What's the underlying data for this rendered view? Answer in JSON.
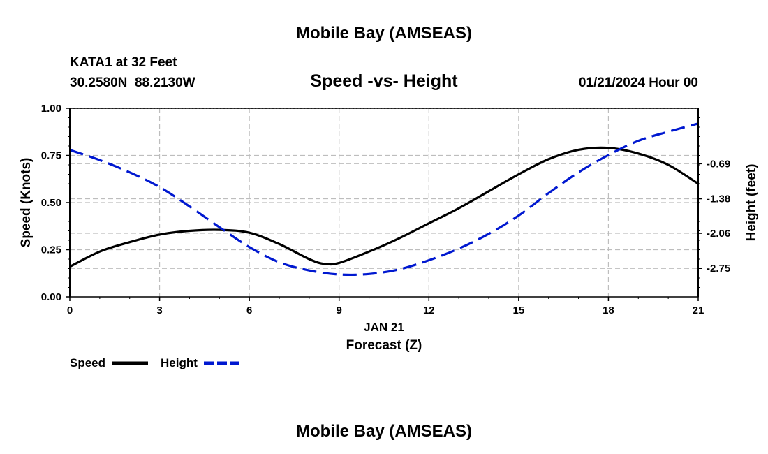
{
  "page": {
    "title": "Mobile Bay (AMSEAS)",
    "station_line": "KATA1 at 32 Feet",
    "coords_line": "30.2580N  88.2130W",
    "subtitle": "Speed -vs- Height",
    "datetime": "01/21/2024 Hour 00",
    "footer_title": "Mobile Bay (AMSEAS)"
  },
  "chart_data": {
    "type": "line",
    "title": "Speed -vs- Height",
    "date_label": "JAN 21",
    "xlabel": "Forecast (Z)",
    "ylabel_left": "Speed (Knots)",
    "ylabel_right": "Height (feet)",
    "xlim": [
      0,
      21
    ],
    "ylim_left": [
      0,
      1
    ],
    "ylim_right": [
      -3.31,
      0.4
    ],
    "x_ticks": [
      0,
      3,
      6,
      9,
      12,
      15,
      18,
      21
    ],
    "y_ticks_left": [
      "0.00",
      "0.25",
      "0.50",
      "0.75",
      "1.00"
    ],
    "y_ticks_right": [
      "-0.69",
      "-1.38",
      "-2.06",
      "-2.75"
    ],
    "y_ticks_right_values": [
      -0.69,
      -1.38,
      -2.06,
      -2.75
    ],
    "grid": true,
    "legend_position": "bottom-left",
    "series": [
      {
        "name": "Speed",
        "axis": "left",
        "color": "#000000",
        "style": "solid",
        "x": [
          0,
          1,
          2,
          3,
          4,
          5,
          6,
          7,
          8,
          8.5,
          9,
          10,
          11,
          12,
          13,
          14,
          15,
          16,
          17,
          18,
          19,
          20,
          21
        ],
        "values": [
          0.16,
          0.24,
          0.29,
          0.33,
          0.35,
          0.355,
          0.34,
          0.28,
          0.2,
          0.175,
          0.18,
          0.24,
          0.31,
          0.39,
          0.47,
          0.56,
          0.65,
          0.73,
          0.78,
          0.79,
          0.76,
          0.7,
          0.6
        ]
      },
      {
        "name": "Height",
        "axis": "right",
        "color": "#0018d0",
        "style": "dashed",
        "x": [
          0,
          1,
          2,
          3,
          4,
          5,
          6,
          7,
          8,
          9,
          10,
          11,
          12,
          13,
          14,
          15,
          16,
          17,
          18,
          19,
          20,
          21
        ],
        "values": [
          -0.42,
          -0.62,
          -0.86,
          -1.15,
          -1.53,
          -1.94,
          -2.33,
          -2.63,
          -2.79,
          -2.87,
          -2.86,
          -2.77,
          -2.59,
          -2.36,
          -2.07,
          -1.71,
          -1.27,
          -0.86,
          -0.52,
          -0.24,
          -0.06,
          0.1
        ]
      }
    ]
  },
  "legend": [
    {
      "label": "Speed",
      "color": "#000000",
      "style": "solid"
    },
    {
      "label": "Height",
      "color": "#0018d0",
      "style": "dashed"
    }
  ]
}
